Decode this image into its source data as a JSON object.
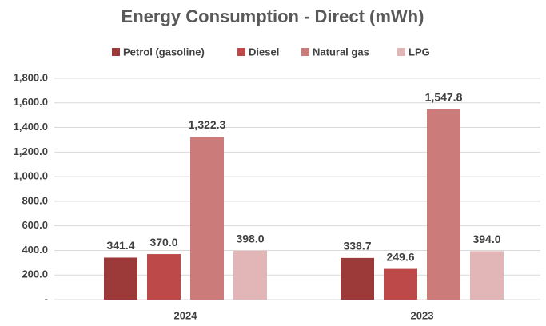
{
  "chart_data": {
    "type": "bar",
    "title": "Energy Consumption - Direct (mWh)",
    "categories": [
      "2024",
      "2023"
    ],
    "series": [
      {
        "name": "Petrol (gasoline)",
        "color": "#9c3a3a",
        "values": [
          341.4,
          338.7
        ],
        "value_labels": [
          "341.4",
          "338.7"
        ]
      },
      {
        "name": "Diesel",
        "color": "#bd4a48",
        "values": [
          370.0,
          249.6
        ],
        "value_labels": [
          "370.0",
          "249.6"
        ]
      },
      {
        "name": "Natural gas",
        "color": "#cc7b7b",
        "values": [
          1322.3,
          1547.8
        ],
        "value_labels": [
          "1,322.3",
          "1,547.8"
        ]
      },
      {
        "name": "LPG",
        "color": "#e2b6b6",
        "values": [
          398.0,
          394.0
        ],
        "value_labels": [
          "398.0",
          "394.0"
        ]
      }
    ],
    "ylim": [
      0,
      1800
    ],
    "yticks": [
      {
        "value": 0,
        "label": "-"
      },
      {
        "value": 200,
        "label": "200.0"
      },
      {
        "value": 400,
        "label": "400.0"
      },
      {
        "value": 600,
        "label": "600.0"
      },
      {
        "value": 800,
        "label": "800.0"
      },
      {
        "value": 1000,
        "label": "1,000.0"
      },
      {
        "value": 1200,
        "label": "1,200.0"
      },
      {
        "value": 1400,
        "label": "1,400.0"
      },
      {
        "value": 1600,
        "label": "1,600.0"
      },
      {
        "value": 1800,
        "label": "1,800.0"
      }
    ],
    "grid": true,
    "legend": "top"
  }
}
